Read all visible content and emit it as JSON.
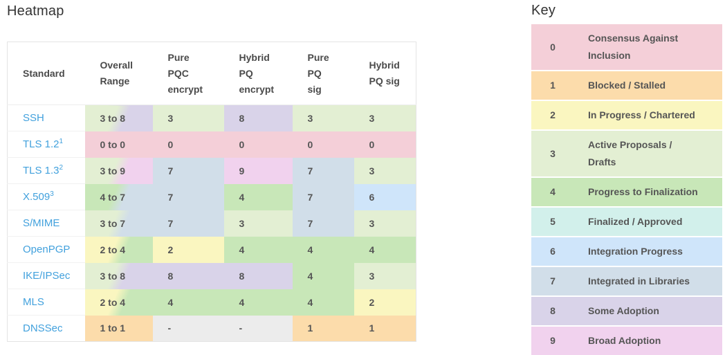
{
  "heatmap": {
    "title": "Heatmap",
    "columns": [
      {
        "id": "standard",
        "label": "Standard",
        "lines": [
          "Standard"
        ]
      },
      {
        "id": "overall-range",
        "label": "Overall Range",
        "lines": [
          "Overall",
          "Range"
        ]
      },
      {
        "id": "pure-pqc-encrypt",
        "label": "Pure PQC encrypt",
        "lines": [
          "Pure",
          "PQC",
          "encrypt"
        ]
      },
      {
        "id": "hybrid-pq-encrypt",
        "label": "Hybrid PQ encrypt",
        "lines": [
          "Hybrid",
          "PQ",
          "encrypt"
        ]
      },
      {
        "id": "pure-pq-sig",
        "label": "Pure PQ sig",
        "lines": [
          "Pure",
          "PQ",
          "sig"
        ]
      },
      {
        "id": "hybrid-pq-sig",
        "label": "Hybrid PQ sig",
        "lines": [
          "Hybrid",
          "PQ sig"
        ]
      }
    ],
    "rows": [
      {
        "standard": "SSH",
        "sup": "",
        "range": "3 to 8",
        "range_from": 3,
        "range_to": 8,
        "values": [
          "3",
          "8",
          "3",
          "3"
        ],
        "levels": [
          3,
          8,
          3,
          3
        ]
      },
      {
        "standard": "TLS 1.2",
        "sup": "1",
        "range": "0 to 0",
        "range_from": 0,
        "range_to": 0,
        "values": [
          "0",
          "0",
          "0",
          "0"
        ],
        "levels": [
          0,
          0,
          0,
          0
        ]
      },
      {
        "standard": "TLS 1.3",
        "sup": "2",
        "range": "3 to 9",
        "range_from": 3,
        "range_to": 9,
        "values": [
          "7",
          "9",
          "7",
          "3"
        ],
        "levels": [
          7,
          9,
          7,
          3
        ]
      },
      {
        "standard": "X.509",
        "sup": "3",
        "range": "4 to 7",
        "range_from": 4,
        "range_to": 7,
        "values": [
          "7",
          "4",
          "7",
          "6"
        ],
        "levels": [
          7,
          4,
          7,
          6
        ]
      },
      {
        "standard": "S/MIME",
        "sup": "",
        "range": "3 to 7",
        "range_from": 3,
        "range_to": 7,
        "values": [
          "7",
          "3",
          "7",
          "3"
        ],
        "levels": [
          7,
          3,
          7,
          3
        ]
      },
      {
        "standard": "OpenPGP",
        "sup": "",
        "range": "2 to 4",
        "range_from": 2,
        "range_to": 4,
        "values": [
          "2",
          "4",
          "4",
          "4"
        ],
        "levels": [
          2,
          4,
          4,
          4
        ]
      },
      {
        "standard": "IKE/IPSec",
        "sup": "",
        "range": "3 to 8",
        "range_from": 3,
        "range_to": 8,
        "values": [
          "8",
          "8",
          "4",
          "3"
        ],
        "levels": [
          8,
          8,
          4,
          3
        ]
      },
      {
        "standard": "MLS",
        "sup": "",
        "range": "2 to 4",
        "range_from": 2,
        "range_to": 4,
        "values": [
          "4",
          "4",
          "4",
          "2"
        ],
        "levels": [
          4,
          4,
          4,
          2
        ]
      },
      {
        "standard": "DNSSec",
        "sup": "",
        "range": "1 to 1",
        "range_from": 1,
        "range_to": 1,
        "values": [
          "-",
          "-",
          "1",
          "1"
        ],
        "levels": [
          null,
          null,
          1,
          1
        ]
      }
    ]
  },
  "key": {
    "title": "Key",
    "entries": [
      {
        "value": "0",
        "label": "Consensus Against Inclusion",
        "lines": [
          "Consensus Against",
          "Inclusion"
        ]
      },
      {
        "value": "1",
        "label": "Blocked / Stalled",
        "lines": [
          "Blocked / Stalled"
        ]
      },
      {
        "value": "2",
        "label": "In Progress / Chartered",
        "lines": [
          "In Progress / Chartered"
        ]
      },
      {
        "value": "3",
        "label": "Active Proposals / Drafts",
        "lines": [
          "Active Proposals /",
          "Drafts"
        ]
      },
      {
        "value": "4",
        "label": "Progress to Finalization",
        "lines": [
          "Progress to Finalization"
        ]
      },
      {
        "value": "5",
        "label": "Finalized / Approved",
        "lines": [
          "Finalized / Approved"
        ]
      },
      {
        "value": "6",
        "label": "Integration Progress",
        "lines": [
          "Integration Progress"
        ]
      },
      {
        "value": "7",
        "label": "Integrated in Libraries",
        "lines": [
          "Integrated in Libraries"
        ]
      },
      {
        "value": "8",
        "label": "Some Adoption",
        "lines": [
          "Some Adoption"
        ]
      },
      {
        "value": "9",
        "label": "Broad Adoption",
        "lines": [
          "Broad Adoption"
        ]
      }
    ]
  },
  "colors": {
    "0": "#f4cfd8",
    "1": "#fcdcab",
    "2": "#faf6c0",
    "3": "#e3efd3",
    "4": "#c8e7b8",
    "5": "#d2f0eb",
    "6": "#cfe5fa",
    "7": "#d1dee9",
    "8": "#d9d3e9",
    "9": "#f1d2ee",
    "na": "#ececec",
    "link": "#42a1dd"
  },
  "chart_data": {
    "type": "heatmap",
    "title": "Heatmap",
    "row_header": "Standard",
    "columns": [
      "Overall Range",
      "Pure PQC encrypt",
      "Hybrid PQ encrypt",
      "Pure PQ sig",
      "Hybrid PQ sig"
    ],
    "rows": [
      "SSH",
      "TLS 1.2",
      "TLS 1.3",
      "X.509",
      "S/MIME",
      "OpenPGP",
      "IKE/IPSec",
      "MLS",
      "DNSSec"
    ],
    "values": [
      [
        "3 to 8",
        3,
        8,
        3,
        3
      ],
      [
        "0 to 0",
        0,
        0,
        0,
        0
      ],
      [
        "3 to 9",
        7,
        9,
        7,
        3
      ],
      [
        "4 to 7",
        7,
        4,
        7,
        6
      ],
      [
        "3 to 7",
        7,
        3,
        7,
        3
      ],
      [
        "2 to 4",
        2,
        4,
        4,
        4
      ],
      [
        "3 to 8",
        8,
        8,
        4,
        3
      ],
      [
        "2 to 4",
        4,
        4,
        4,
        2
      ],
      [
        "1 to 1",
        null,
        null,
        1,
        1
      ]
    ],
    "scale_min": 0,
    "scale_max": 9,
    "legend_title": "Key",
    "legend_position": "right",
    "legend": {
      "0": "Consensus Against Inclusion",
      "1": "Blocked / Stalled",
      "2": "In Progress / Chartered",
      "3": "Active Proposals / Drafts",
      "4": "Progress to Finalization",
      "5": "Finalized / Approved",
      "6": "Integration Progress",
      "7": "Integrated in Libraries",
      "8": "Some Adoption",
      "9": "Broad Adoption"
    }
  }
}
